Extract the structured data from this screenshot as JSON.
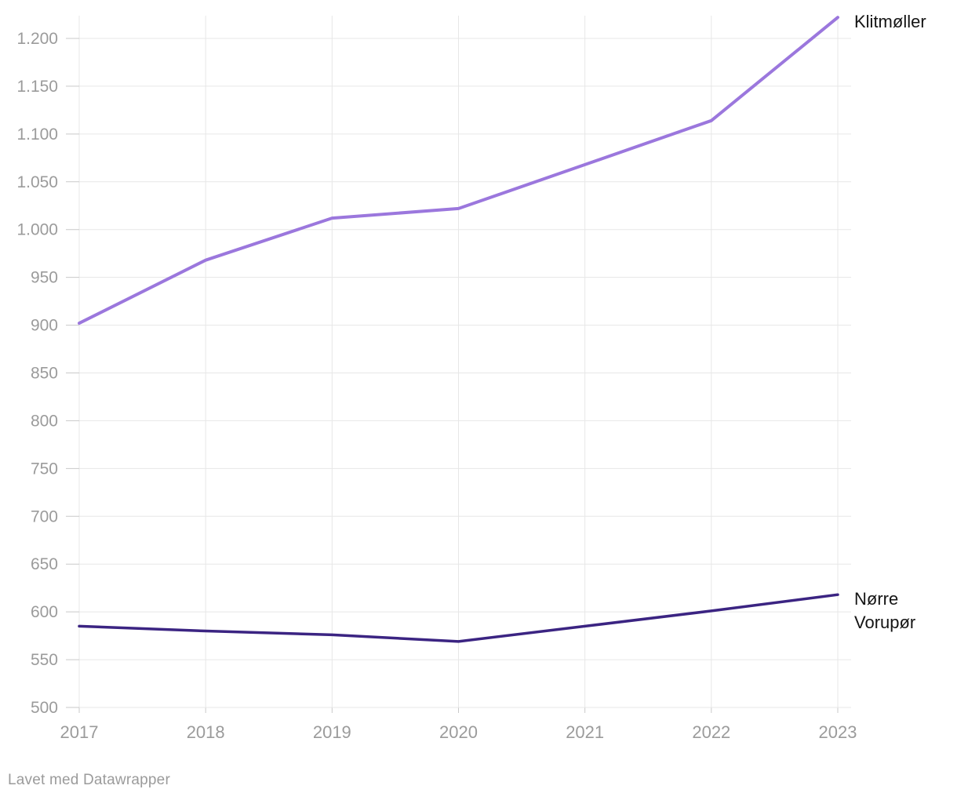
{
  "chart_data": {
    "type": "line",
    "x": [
      2017,
      2018,
      2019,
      2020,
      2021,
      2022,
      2023
    ],
    "xtick_labels": [
      "2017",
      "2018",
      "2019",
      "2020",
      "2021",
      "2022",
      "2023"
    ],
    "series": [
      {
        "name": "Klitmøller",
        "label_lines": [
          "Klitmøller"
        ],
        "color": "#9b77dd",
        "values": [
          902,
          968,
          1012,
          1022,
          1068,
          1114,
          1222
        ]
      },
      {
        "name": "Nørre Vorupør",
        "label_lines": [
          "Nørre",
          "Vorupør"
        ],
        "color": "#3b2482",
        "values": [
          585,
          580,
          576,
          569,
          585,
          601,
          618
        ]
      }
    ],
    "ylim": [
      500,
      1225
    ],
    "yticks": [
      500,
      550,
      600,
      650,
      700,
      750,
      800,
      850,
      900,
      950,
      1000,
      1050,
      1100,
      1150,
      1200
    ],
    "ytick_labels": [
      "500",
      "550",
      "600",
      "650",
      "700",
      "750",
      "800",
      "850",
      "900",
      "950",
      "1.000",
      "1.050",
      "1.100",
      "1.150",
      "1.200"
    ],
    "grid": "both",
    "legend_position": "line-end-labels",
    "number_format": "da-DK (dot thousands separator)"
  },
  "colors": {
    "gridline": "#e7e7e7",
    "tick": "#c9c9c9",
    "axis_text": "#9b9b9b",
    "series_label_text": "#141414",
    "background": "#ffffff"
  },
  "footer": {
    "credit": "Lavet med Datawrapper"
  }
}
